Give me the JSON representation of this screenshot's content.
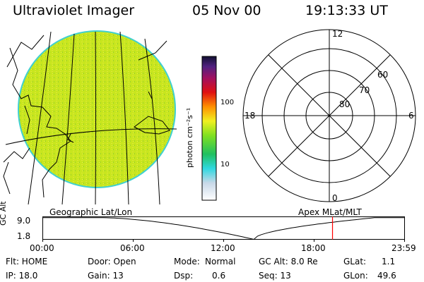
{
  "header": {
    "instrument": "Ultraviolet Imager",
    "date": "05 Nov 00",
    "time": "19:13:33 UT"
  },
  "colorbar": {
    "unit_label": "photon cm⁻²s⁻¹",
    "ticks": [
      "100",
      "10"
    ],
    "scale": "log"
  },
  "polar_plot": {
    "mlt_labels": [
      "12",
      "18",
      "6",
      "0"
    ],
    "lat_labels": [
      "60",
      "70",
      "80"
    ]
  },
  "captions": {
    "left": "Geographic Lat/Lon",
    "right": "Apex MLat/MLT"
  },
  "altitude_plot": {
    "axis_label": "GC Alt",
    "y_ticks": [
      "9.0",
      "1.8"
    ],
    "x_ticks": [
      "00:00",
      "06:00",
      "12:00",
      "18:00",
      "23:59"
    ],
    "y_range_re": [
      1.8,
      9.0
    ],
    "x_range_hours": [
      0,
      24
    ],
    "current_time_hours": 19.22,
    "marker_color": "#ff0000"
  },
  "status": {
    "flt": "Flt: HOME",
    "door": "Door: Open",
    "mode_label": "Mode:",
    "mode_value": "Normal",
    "gc_alt": "GC Alt: 8.0 Re",
    "glat_label": "GLat:",
    "glat_value": "1.1",
    "ip": "IP: 18.0",
    "gain": "Gain: 13",
    "dsp_label": "Dsp:",
    "dsp_value": "0.6",
    "seq": "Seq: 13",
    "glon_label": "GLon:",
    "glon_value": "49.6"
  },
  "colors": {
    "disk_fill": "#c8e61e",
    "disk_edge": "#40d0d0"
  }
}
